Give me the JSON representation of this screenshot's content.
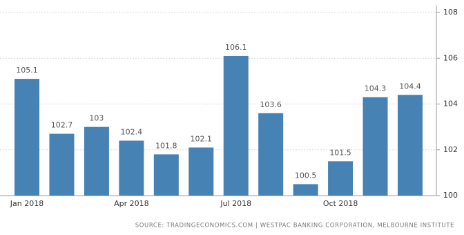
{
  "chart_data": {
    "type": "bar",
    "categories": [
      "Jan 2018",
      null,
      null,
      "Apr 2018",
      null,
      null,
      "Jul 2018",
      null,
      null,
      "Oct 2018",
      null,
      null
    ],
    "values": [
      105.1,
      102.7,
      103,
      102.4,
      101.8,
      102.1,
      106.1,
      103.6,
      100.5,
      101.5,
      104.3,
      104.4
    ],
    "color": "#4682b4",
    "ylim": [
      100,
      108
    ],
    "yticks": [
      100,
      102,
      104,
      106,
      108
    ],
    "grid": true,
    "source": "SOURCE: TRADINGECONOMICS.COM | WESTPAC BANKING CORPORATION, MELBOURNE INSTITUTE"
  }
}
